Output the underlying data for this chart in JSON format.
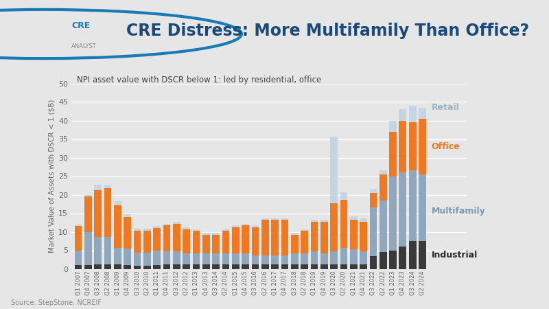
{
  "title": "CRE Distress: More Multifamily Than Office?",
  "subtitle": "NPI asset value with DSCR below 1: led by residential, office",
  "ylabel": "Market Value of Assets with DSCR < 1 ($B)",
  "source": "Source: StepStone, NCREIF",
  "ylim": [
    0,
    50
  ],
  "yticks": [
    0,
    5,
    10,
    15,
    20,
    25,
    30,
    35,
    40,
    45,
    50
  ],
  "bg_color": "#e6e6e6",
  "header_color": "#f0f0f0",
  "plot_bg_color": "#e6e6e6",
  "colors": {
    "Industrial": "#3a3a3a",
    "Multifamily": "#8fa8be",
    "Office": "#f07820",
    "Retail": "#c5d5e4"
  },
  "label_colors": {
    "Industrial": "#2a2a2a",
    "Multifamily": "#7a9ab5",
    "Office": "#f07820",
    "Retail": "#9ab5c8"
  },
  "quarters": [
    "Q1 2007",
    "Q4 2007",
    "Q3 2008",
    "Q2 2008",
    "Q1 2009",
    "Q4 2009",
    "Q3 2010",
    "Q2 2010",
    "Q1 2011",
    "Q4 2011",
    "Q3 2012",
    "Q2 2012",
    "Q1 2013",
    "Q4 2013",
    "Q3 2014",
    "Q2 2014",
    "Q1 2015",
    "Q4 2015",
    "Q3 2016",
    "Q2 2016",
    "Q1 2017",
    "Q4 2017",
    "Q3 2018",
    "Q2 2018",
    "Q1 2019",
    "Q4 2019",
    "Q3 2020",
    "Q2 2020",
    "Q1 2021",
    "Q4 2021",
    "Q3 2022",
    "Q2 2022",
    "Q1 2023",
    "Q4 2023",
    "Q3 2024",
    "Q2 2024"
  ],
  "Industrial": [
    1.0,
    1.0,
    1.2,
    1.2,
    1.2,
    1.0,
    0.8,
    0.8,
    1.0,
    1.2,
    1.2,
    1.2,
    1.2,
    1.2,
    1.2,
    1.2,
    1.2,
    1.2,
    1.2,
    1.2,
    1.2,
    1.2,
    1.2,
    1.2,
    1.2,
    1.2,
    1.2,
    1.2,
    1.2,
    1.2,
    3.5,
    4.5,
    5.0,
    6.0,
    7.5,
    7.5
  ],
  "Multifamily": [
    4.0,
    9.0,
    7.5,
    7.5,
    4.5,
    4.5,
    3.5,
    3.5,
    4.0,
    3.5,
    3.5,
    3.0,
    3.0,
    3.0,
    3.0,
    3.0,
    3.0,
    3.0,
    2.5,
    2.5,
    2.5,
    2.5,
    3.0,
    3.0,
    3.5,
    3.0,
    3.5,
    4.5,
    4.0,
    3.5,
    13.0,
    14.0,
    20.0,
    20.0,
    19.0,
    18.0
  ],
  "Office": [
    6.5,
    9.5,
    12.5,
    13.0,
    11.5,
    8.5,
    6.0,
    6.0,
    6.0,
    7.0,
    7.5,
    6.5,
    6.0,
    5.0,
    5.0,
    6.0,
    7.0,
    7.5,
    7.5,
    9.5,
    9.5,
    9.5,
    5.0,
    6.0,
    8.0,
    8.5,
    13.0,
    13.0,
    8.0,
    8.0,
    4.0,
    7.0,
    12.0,
    14.0,
    13.0,
    15.0
  ],
  "Retail": [
    0.5,
    0.5,
    1.5,
    1.0,
    1.0,
    0.8,
    0.5,
    0.5,
    0.5,
    0.5,
    0.5,
    0.5,
    0.5,
    0.5,
    0.5,
    0.5,
    0.5,
    0.5,
    0.5,
    0.5,
    0.5,
    0.5,
    0.5,
    0.5,
    0.5,
    0.5,
    18.0,
    2.0,
    1.0,
    1.0,
    1.0,
    1.0,
    3.0,
    3.0,
    4.5,
    3.0
  ]
}
